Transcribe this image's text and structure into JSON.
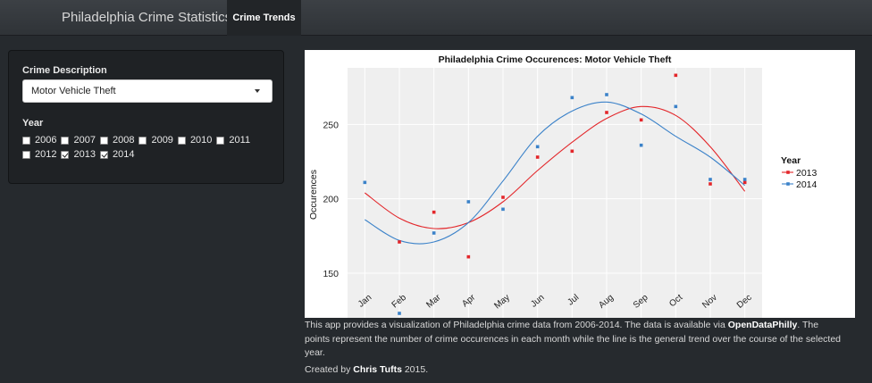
{
  "nav": {
    "brand": "Philadelphia Crime Statistics",
    "tab": "Crime Trends"
  },
  "sidebar": {
    "crime_label": "Crime Description",
    "crime_selected": "Motor Vehicle Theft",
    "year_label": "Year",
    "years": [
      {
        "label": "2006",
        "checked": false
      },
      {
        "label": "2007",
        "checked": false
      },
      {
        "label": "2008",
        "checked": false
      },
      {
        "label": "2009",
        "checked": false
      },
      {
        "label": "2010",
        "checked": false
      },
      {
        "label": "2011",
        "checked": false
      },
      {
        "label": "2012",
        "checked": false
      },
      {
        "label": "2013",
        "checked": true
      },
      {
        "label": "2014",
        "checked": true
      }
    ]
  },
  "footer": {
    "text1": "This app provides a visualization of Philadelphia crime data from 2006-2014. The data is available via ",
    "link": "OpenDataPhilly",
    "text2": ". The points represent the number of crime occurences in each month while the line is the general trend over the course of the selected year.",
    "credit_prefix": "Created by ",
    "credit_name": "Chris Tufts",
    "credit_suffix": " 2015."
  },
  "chart_data": {
    "type": "scatter",
    "title": "Philadelphia Crime Occurences: Motor Vehicle Theft",
    "xlabel": "",
    "ylabel": "Occurences",
    "categories": [
      "Jan",
      "Feb",
      "Mar",
      "Apr",
      "May",
      "Jun",
      "Jul",
      "Aug",
      "Sep",
      "Oct",
      "Nov",
      "Dec"
    ],
    "yticks": [
      150,
      200,
      250
    ],
    "ylim": [
      120,
      288
    ],
    "legend_title": "Year",
    "legend_position": "right",
    "grid": true,
    "series": [
      {
        "name": "2013",
        "color": "#e3262a",
        "values": [
          null,
          171,
          191,
          161,
          201,
          228,
          232,
          258,
          253,
          283,
          210,
          211
        ],
        "trend": [
          204,
          187,
          180,
          184,
          198,
          219,
          238,
          254,
          262,
          256,
          235,
          205
        ]
      },
      {
        "name": "2014",
        "color": "#3b82c9",
        "values": [
          211,
          123,
          177,
          198,
          193,
          235,
          268,
          270,
          236,
          262,
          213,
          213
        ],
        "trend": [
          186,
          172,
          171,
          184,
          212,
          242,
          259,
          265,
          257,
          242,
          228,
          209
        ]
      }
    ]
  }
}
